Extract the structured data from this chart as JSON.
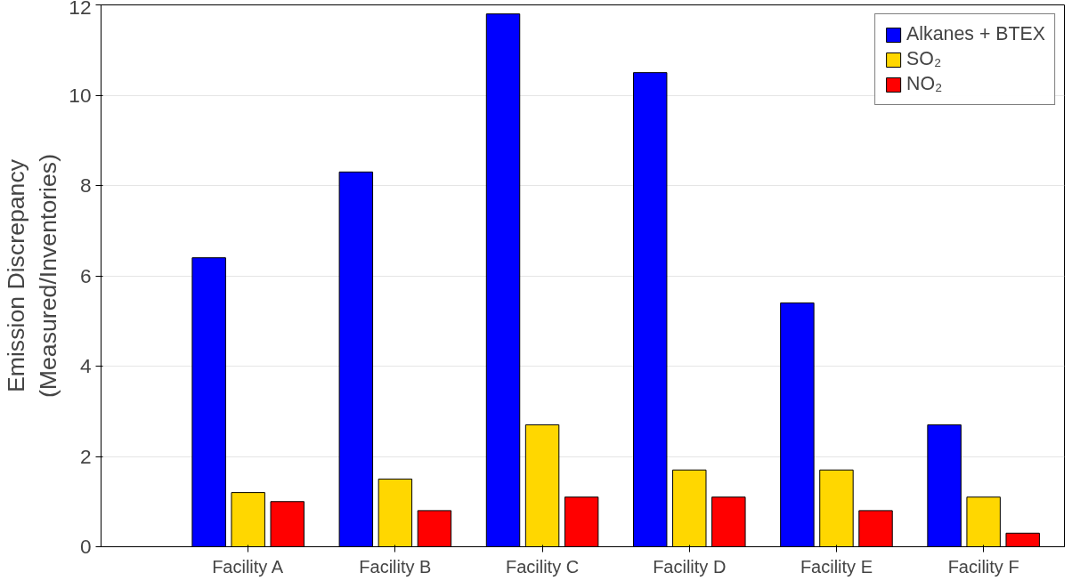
{
  "chart_data": {
    "type": "bar",
    "ylabel": "Emission Discrepancy\n(Measured/Inventories)",
    "categories": [
      "Facility A",
      "Facility B",
      "Facility C",
      "Facility D",
      "Facility E",
      "Facility F"
    ],
    "series": [
      {
        "name": "Alkanes + BTEX",
        "color": "#0000ff",
        "values": [
          6.4,
          8.3,
          11.8,
          10.5,
          5.4,
          2.7
        ]
      },
      {
        "name": "SO₂",
        "color": "#ffd700",
        "values": [
          1.2,
          1.5,
          2.7,
          1.7,
          1.7,
          1.1
        ]
      },
      {
        "name": "NO₂",
        "color": "#ff0000",
        "values": [
          1.0,
          0.8,
          1.1,
          1.1,
          0.8,
          0.3
        ]
      }
    ],
    "ylim": [
      0,
      12
    ],
    "yticks": [
      0,
      2,
      4,
      6,
      8,
      10,
      12
    ],
    "grid": "y",
    "legend": "top right"
  }
}
